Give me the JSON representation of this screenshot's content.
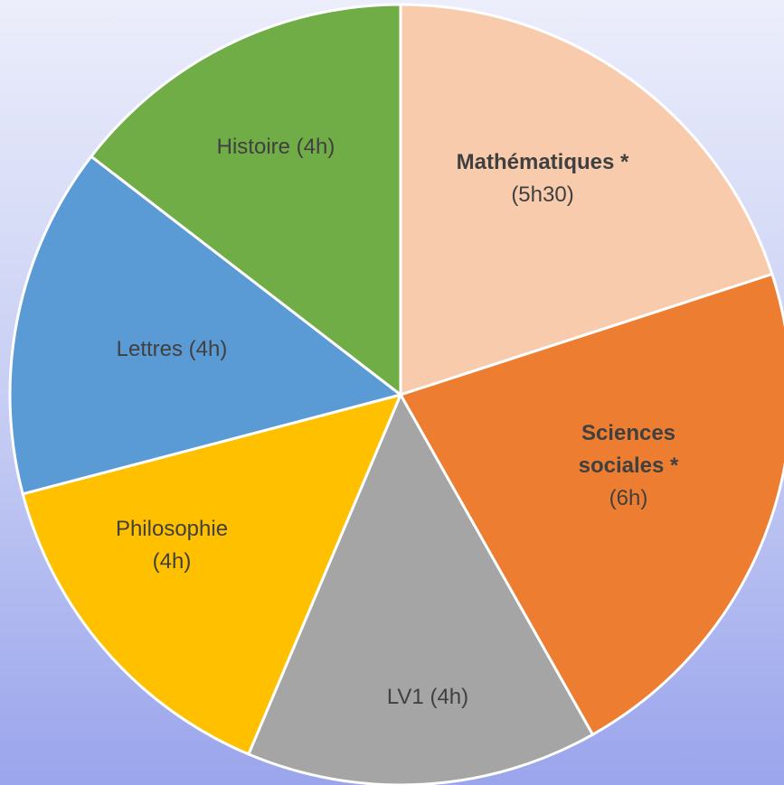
{
  "chart_data": {
    "type": "pie",
    "categories": [
      "Mathématiques *",
      "Sciences sociales *",
      "LV1",
      "Philosophie",
      "Lettres",
      "Histoire"
    ],
    "values": [
      5.5,
      6,
      4,
      4,
      4,
      4
    ],
    "value_labels": [
      "(5h30)",
      "(6h)",
      "(4h)",
      "(4h)",
      "(4h)",
      "(4h)"
    ],
    "colors": [
      "#f8cbad",
      "#ed7d31",
      "#a5a5a5",
      "#ffc000",
      "#5b9bd5",
      "#70ad47"
    ],
    "start_angle": 0,
    "direction": "clockwise"
  }
}
